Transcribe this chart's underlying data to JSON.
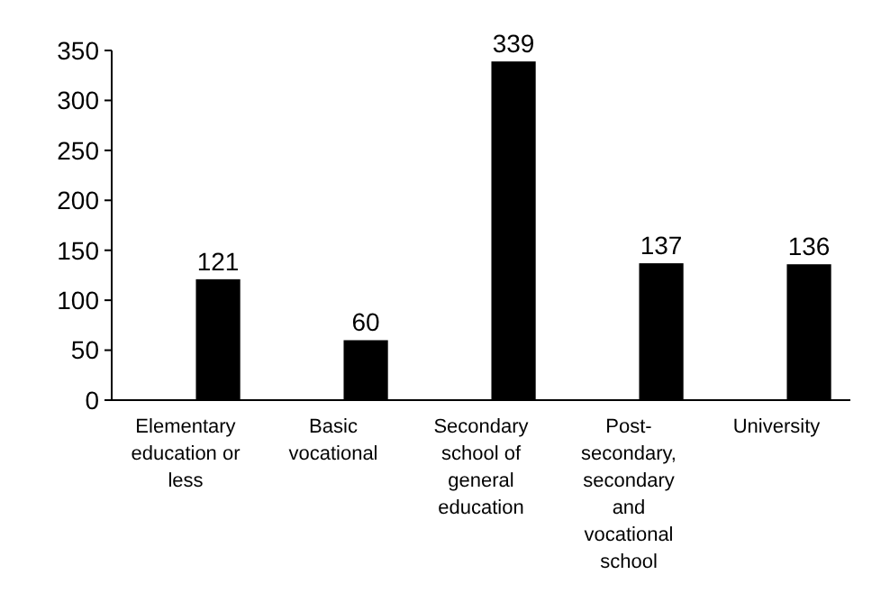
{
  "chart_data": {
    "type": "bar",
    "categories": [
      "Elementary education or less",
      "Basic vocational",
      "Secondary school of general education",
      "Post-secondary, secondary and vocational school",
      "University"
    ],
    "values": [
      121,
      60,
      339,
      137,
      136
    ],
    "color": "#000000",
    "ylim": [
      0,
      350
    ],
    "yticks": [
      0,
      50,
      100,
      150,
      200,
      250,
      300,
      350
    ],
    "data_labels": true
  }
}
